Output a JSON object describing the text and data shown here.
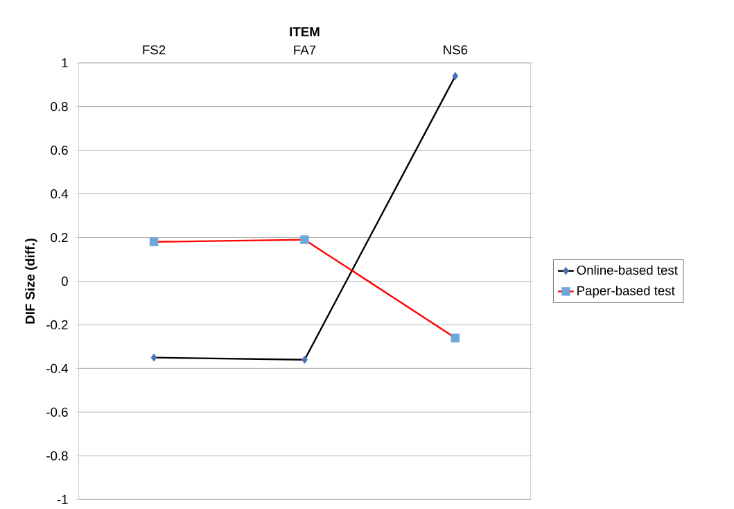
{
  "chart_data": {
    "type": "line",
    "xlabel": "ITEM",
    "ylabel": "DIF Size (diff.)",
    "categories": [
      "FS2",
      "FA7",
      "NS6"
    ],
    "series": [
      {
        "name": "Online-based test",
        "color": "#000000",
        "marker": "diamond",
        "values": [
          -0.35,
          -0.36,
          0.94
        ]
      },
      {
        "name": "Paper-based test",
        "color": "#ff0000",
        "marker": "square",
        "values": [
          0.18,
          0.19,
          -0.26
        ]
      }
    ],
    "ylim": [
      -1,
      1
    ],
    "yticks": [
      -1,
      -0.8,
      -0.6,
      -0.4,
      -0.2,
      0,
      0.2,
      0.4,
      0.6,
      0.8,
      1
    ],
    "grid": "y",
    "legend": "right"
  }
}
